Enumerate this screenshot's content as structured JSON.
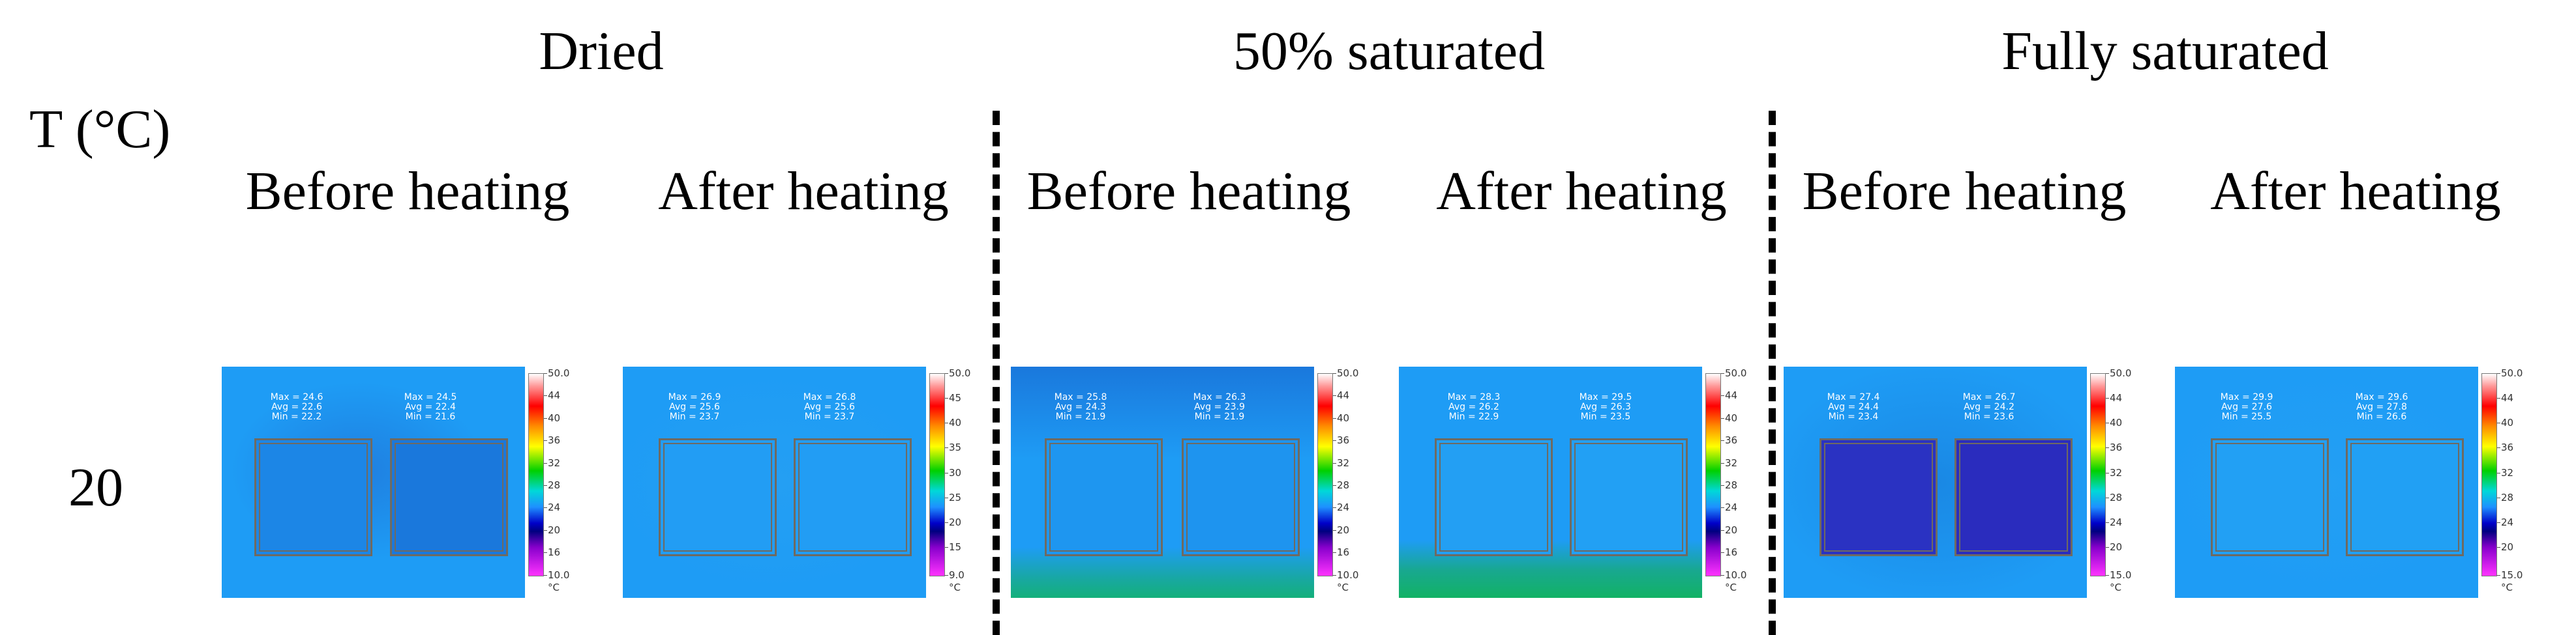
{
  "figure": {
    "axis_label": "T (°C)",
    "row_label": "20",
    "groups": [
      {
        "title": "Dried"
      },
      {
        "title": "50% saturated"
      },
      {
        "title": "Fully saturated"
      }
    ],
    "columns": [
      {
        "title": "Before heating"
      },
      {
        "title": "After heating"
      },
      {
        "title": "Before heating"
      },
      {
        "title": "After heating"
      },
      {
        "title": "Before heating"
      },
      {
        "title": "After heating"
      }
    ]
  },
  "panels": [
    {
      "roi": [
        {
          "max": "Max = 24.6",
          "avg": "Avg = 22.6",
          "min": "Min = 22.2"
        },
        {
          "max": "Max = 24.5",
          "avg": "Avg = 22.4",
          "min": "Min = 21.6"
        }
      ],
      "scale": [
        "50.0",
        "44",
        "40",
        "36",
        "32",
        "28",
        "24",
        "20",
        "16",
        "10.0"
      ],
      "unit": "°C"
    },
    {
      "roi": [
        {
          "max": "Max = 26.9",
          "avg": "Avg = 25.6",
          "min": "Min = 23.7"
        },
        {
          "max": "Max = 26.8",
          "avg": "Avg = 25.6",
          "min": "Min = 23.7"
        }
      ],
      "scale": [
        "50.0",
        "45",
        "40",
        "35",
        "30",
        "25",
        "20",
        "15",
        "9.0"
      ],
      "unit": "°C"
    },
    {
      "roi": [
        {
          "max": "Max = 25.8",
          "avg": "Avg = 24.3",
          "min": "Min = 21.9"
        },
        {
          "max": "Max = 26.3",
          "avg": "Avg = 23.9",
          "min": "Min = 21.9"
        }
      ],
      "scale": [
        "50.0",
        "44",
        "40",
        "36",
        "32",
        "28",
        "24",
        "20",
        "16",
        "10.0"
      ],
      "unit": "°C"
    },
    {
      "roi": [
        {
          "max": "Max = 28.3",
          "avg": "Avg = 26.2",
          "min": "Min = 22.9"
        },
        {
          "max": "Max = 29.5",
          "avg": "Avg = 26.3",
          "min": "Min = 23.5"
        }
      ],
      "scale": [
        "50.0",
        "44",
        "40",
        "36",
        "32",
        "28",
        "24",
        "20",
        "16",
        "10.0"
      ],
      "unit": "°C"
    },
    {
      "roi": [
        {
          "max": "Max = 27.4",
          "avg": "Avg = 24.4",
          "min": "Min = 23.4"
        },
        {
          "max": "Max = 26.7",
          "avg": "Avg = 24.2",
          "min": "Min = 23.6"
        }
      ],
      "scale": [
        "50.0",
        "44",
        "40",
        "36",
        "32",
        "28",
        "24",
        "20",
        "15.0"
      ],
      "unit": "°C"
    },
    {
      "roi": [
        {
          "max": "Max = 29.9",
          "avg": "Avg = 27.6",
          "min": "Min = 25.5"
        },
        {
          "max": "Max = 29.6",
          "avg": "Avg = 27.8",
          "min": "Min = 26.6"
        }
      ],
      "scale": [
        "50.0",
        "44",
        "40",
        "36",
        "32",
        "28",
        "24",
        "20",
        "15.0"
      ],
      "unit": "°C"
    }
  ],
  "colors": {
    "thermal_base": "#1e9cf5",
    "thermal_dark": "#1a6fd8",
    "thermal_deep": "#2a2fc0",
    "thermal_green": "#15b08a"
  }
}
